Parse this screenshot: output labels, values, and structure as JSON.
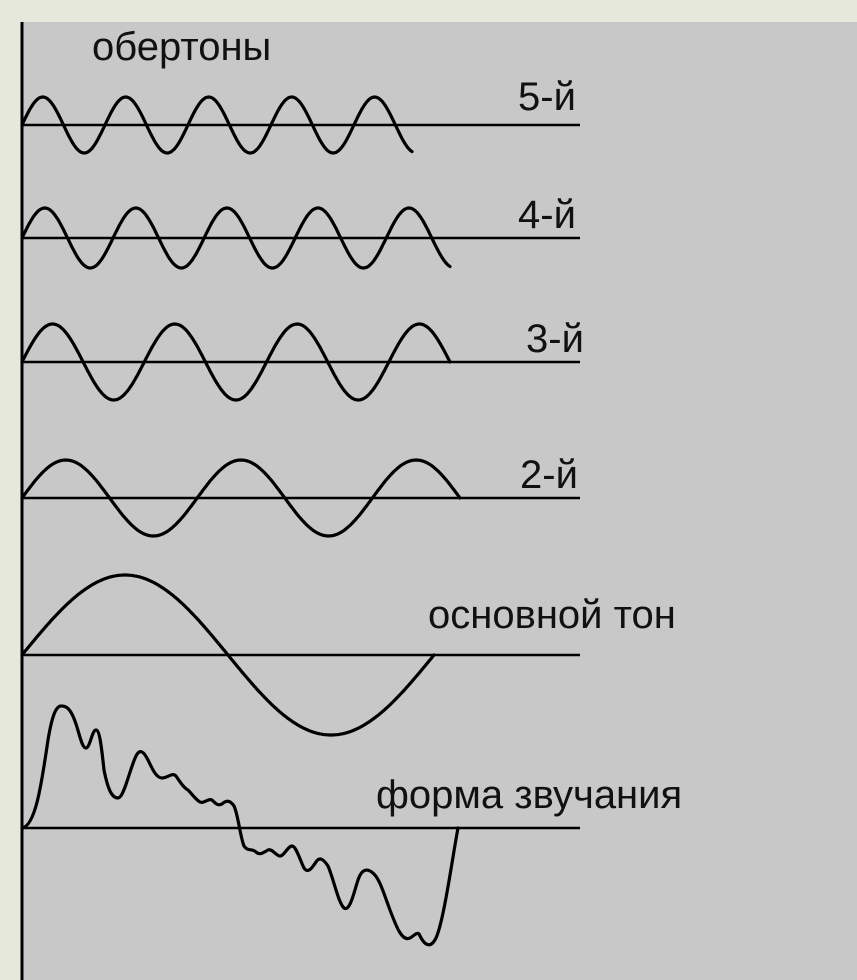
{
  "diagram": {
    "title": "обертоны",
    "colors": {
      "frame": "#e6e8dc",
      "panel": "#c8c8c8",
      "ink": "#000000"
    },
    "waves": [
      {
        "id": "overtone-5",
        "label": "5-й",
        "cycles": 4.7,
        "amplitude": 28
      },
      {
        "id": "overtone-4",
        "label": "4-й",
        "cycles": 4.7,
        "amplitude": 30
      },
      {
        "id": "overtone-3",
        "label": "3-й",
        "cycles": 3.5,
        "amplitude": 38
      },
      {
        "id": "overtone-2",
        "label": "2-й",
        "cycles": 2.5,
        "amplitude": 38
      },
      {
        "id": "fundamental",
        "label": "основной тон",
        "cycles": 1.0,
        "amplitude": 80
      },
      {
        "id": "sound-form",
        "label": "форма звучания",
        "type": "composite"
      }
    ]
  }
}
